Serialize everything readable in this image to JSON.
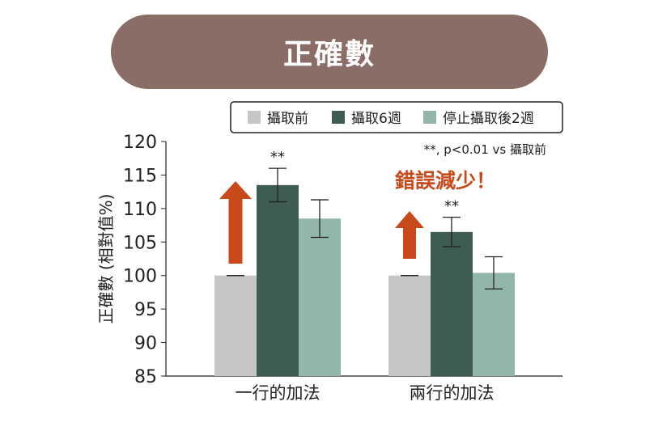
{
  "chart_data": {
    "type": "bar",
    "title": "正確數",
    "ylabel": "正確數 (相對值%)",
    "xlabel": "",
    "ylim": [
      85,
      120
    ],
    "yticks": [
      85,
      90,
      95,
      100,
      105,
      110,
      115,
      120
    ],
    "categories": [
      "一行的加法",
      "兩行的加法"
    ],
    "series": [
      {
        "name": "攝取前",
        "color": "#c6c6c6",
        "values": [
          100,
          100
        ],
        "errors": [
          0,
          0
        ]
      },
      {
        "name": "攝取6週",
        "color": "#3f5c53",
        "values": [
          113.5,
          106.5
        ],
        "errors": [
          2.5,
          2.2
        ]
      },
      {
        "name": "停止攝取後2週",
        "color": "#92b6aa",
        "values": [
          108.5,
          100.4
        ],
        "errors": [
          2.8,
          2.4
        ]
      }
    ],
    "significance": [
      "**",
      "**"
    ],
    "significance_note": "**, p<0.01 vs 攝取前",
    "annotation": "錯誤減少！",
    "arrow_color": "#c84a1a",
    "legend_position": "top"
  }
}
